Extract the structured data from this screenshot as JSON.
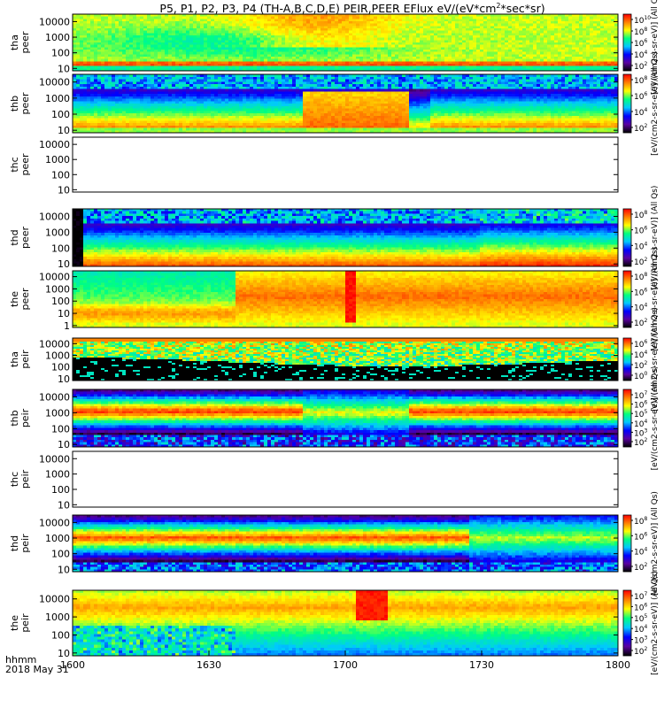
{
  "chart_data": {
    "type": "heatmap",
    "title": "P5, P1, P2, P3, P4 (TH-A,B,C,D,E) PEIR,PEER EFlux eV/(eV*cm",
    "title_sup": "2",
    "title_tail": "*sec*sr)",
    "x": {
      "ticks": [
        "1600",
        "1630",
        "1700",
        "1730",
        "1800"
      ],
      "label_time": "hhmm",
      "label_date": "2018 May 31",
      "range_minutes": [
        0,
        120
      ]
    },
    "y_scale": "log",
    "y_ticks": [
      "10000",
      "1000",
      "100",
      "10"
    ],
    "panels": [
      {
        "name": "tha peer",
        "l1": "tha",
        "l2": "peer",
        "ylim": [
          7,
          30000
        ],
        "data": true,
        "extra_tick": "",
        "cbar": [
          "10",
          "8",
          "6",
          "4",
          "2"
        ],
        "cbar_label": "[eV/(cm2-s-sr-eV)] (All Qs)",
        "mode": "a_peer"
      },
      {
        "name": "thb peer",
        "l1": "thb",
        "l2": "peer",
        "ylim": [
          7,
          30000
        ],
        "data": true,
        "extra_tick": "",
        "cbar": [
          "8",
          "6",
          "4",
          "2"
        ],
        "cbar_label": "[eV/(cm2-s-sr-eV)] (All Qs)",
        "mode": "b_peer"
      },
      {
        "name": "thc peer",
        "l1": "thc",
        "l2": "peer",
        "ylim": [
          7,
          30000
        ],
        "data": false,
        "extra_tick": "",
        "cbar": [],
        "cbar_label": "",
        "mode": "empty"
      },
      {
        "name": "thd peer",
        "l1": "thd",
        "l2": "peer",
        "ylim": [
          7,
          30000
        ],
        "data": true,
        "extra_tick": "",
        "cbar": [
          "8",
          "6",
          "4",
          "2"
        ],
        "cbar_label": "[eV/(cm2-s-sr-eV)] (All Qs)",
        "mode": "d_peer"
      },
      {
        "name": "the peer",
        "l1": "the",
        "l2": "peer",
        "ylim": [
          0.7,
          30000
        ],
        "data": true,
        "extra_tick": "1",
        "cbar": [
          "8",
          "6",
          "4",
          "2"
        ],
        "cbar_label": "[eV/(cm2-s-sr-eV)] (All Qs)",
        "mode": "e_peer"
      },
      {
        "name": "tha peir",
        "l1": "tha",
        "l2": "peir",
        "ylim": [
          7,
          30000
        ],
        "data": true,
        "extra_tick": "",
        "cbar": [
          "6",
          "4",
          "2",
          "0"
        ],
        "cbar_label": "[eV/(cm2-s-sr-eV)] (All Qs)",
        "mode": "a_peir"
      },
      {
        "name": "thb peir",
        "l1": "thb",
        "l2": "peir",
        "ylim": [
          7,
          30000
        ],
        "data": true,
        "extra_tick": "",
        "cbar": [
          "7",
          "6",
          "5",
          "4",
          "3",
          "2"
        ],
        "cbar_label": "[eV/(cm2-s-sr-eV)] (All Qs)",
        "mode": "b_peir"
      },
      {
        "name": "thc peir",
        "l1": "thc",
        "l2": "peir",
        "ylim": [
          7,
          30000
        ],
        "data": false,
        "extra_tick": "",
        "cbar": [],
        "cbar_label": "",
        "mode": "empty"
      },
      {
        "name": "thd peir",
        "l1": "thd",
        "l2": "peir",
        "ylim": [
          7,
          30000
        ],
        "data": true,
        "extra_tick": "",
        "cbar": [
          "8",
          "6",
          "4",
          "2"
        ],
        "cbar_label": "[eV/(cm2-s-sr-eV)] (All Qs)",
        "mode": "d_peir"
      },
      {
        "name": "the peir",
        "l1": "the",
        "l2": "peir",
        "ylim": [
          7,
          30000
        ],
        "data": true,
        "extra_tick": "",
        "cbar": [
          "7",
          "6",
          "5",
          "4",
          "3",
          "2"
        ],
        "cbar_label": "[eV/(cm2-s-sr-eV)] (All Qs)",
        "mode": "e_peir"
      }
    ],
    "colormap": [
      "#000000",
      "#5a00a0",
      "#0000ff",
      "#00c8ff",
      "#00ff80",
      "#ffff00",
      "#ff8000",
      "#ff0000"
    ],
    "grid": false,
    "legend": "none"
  }
}
